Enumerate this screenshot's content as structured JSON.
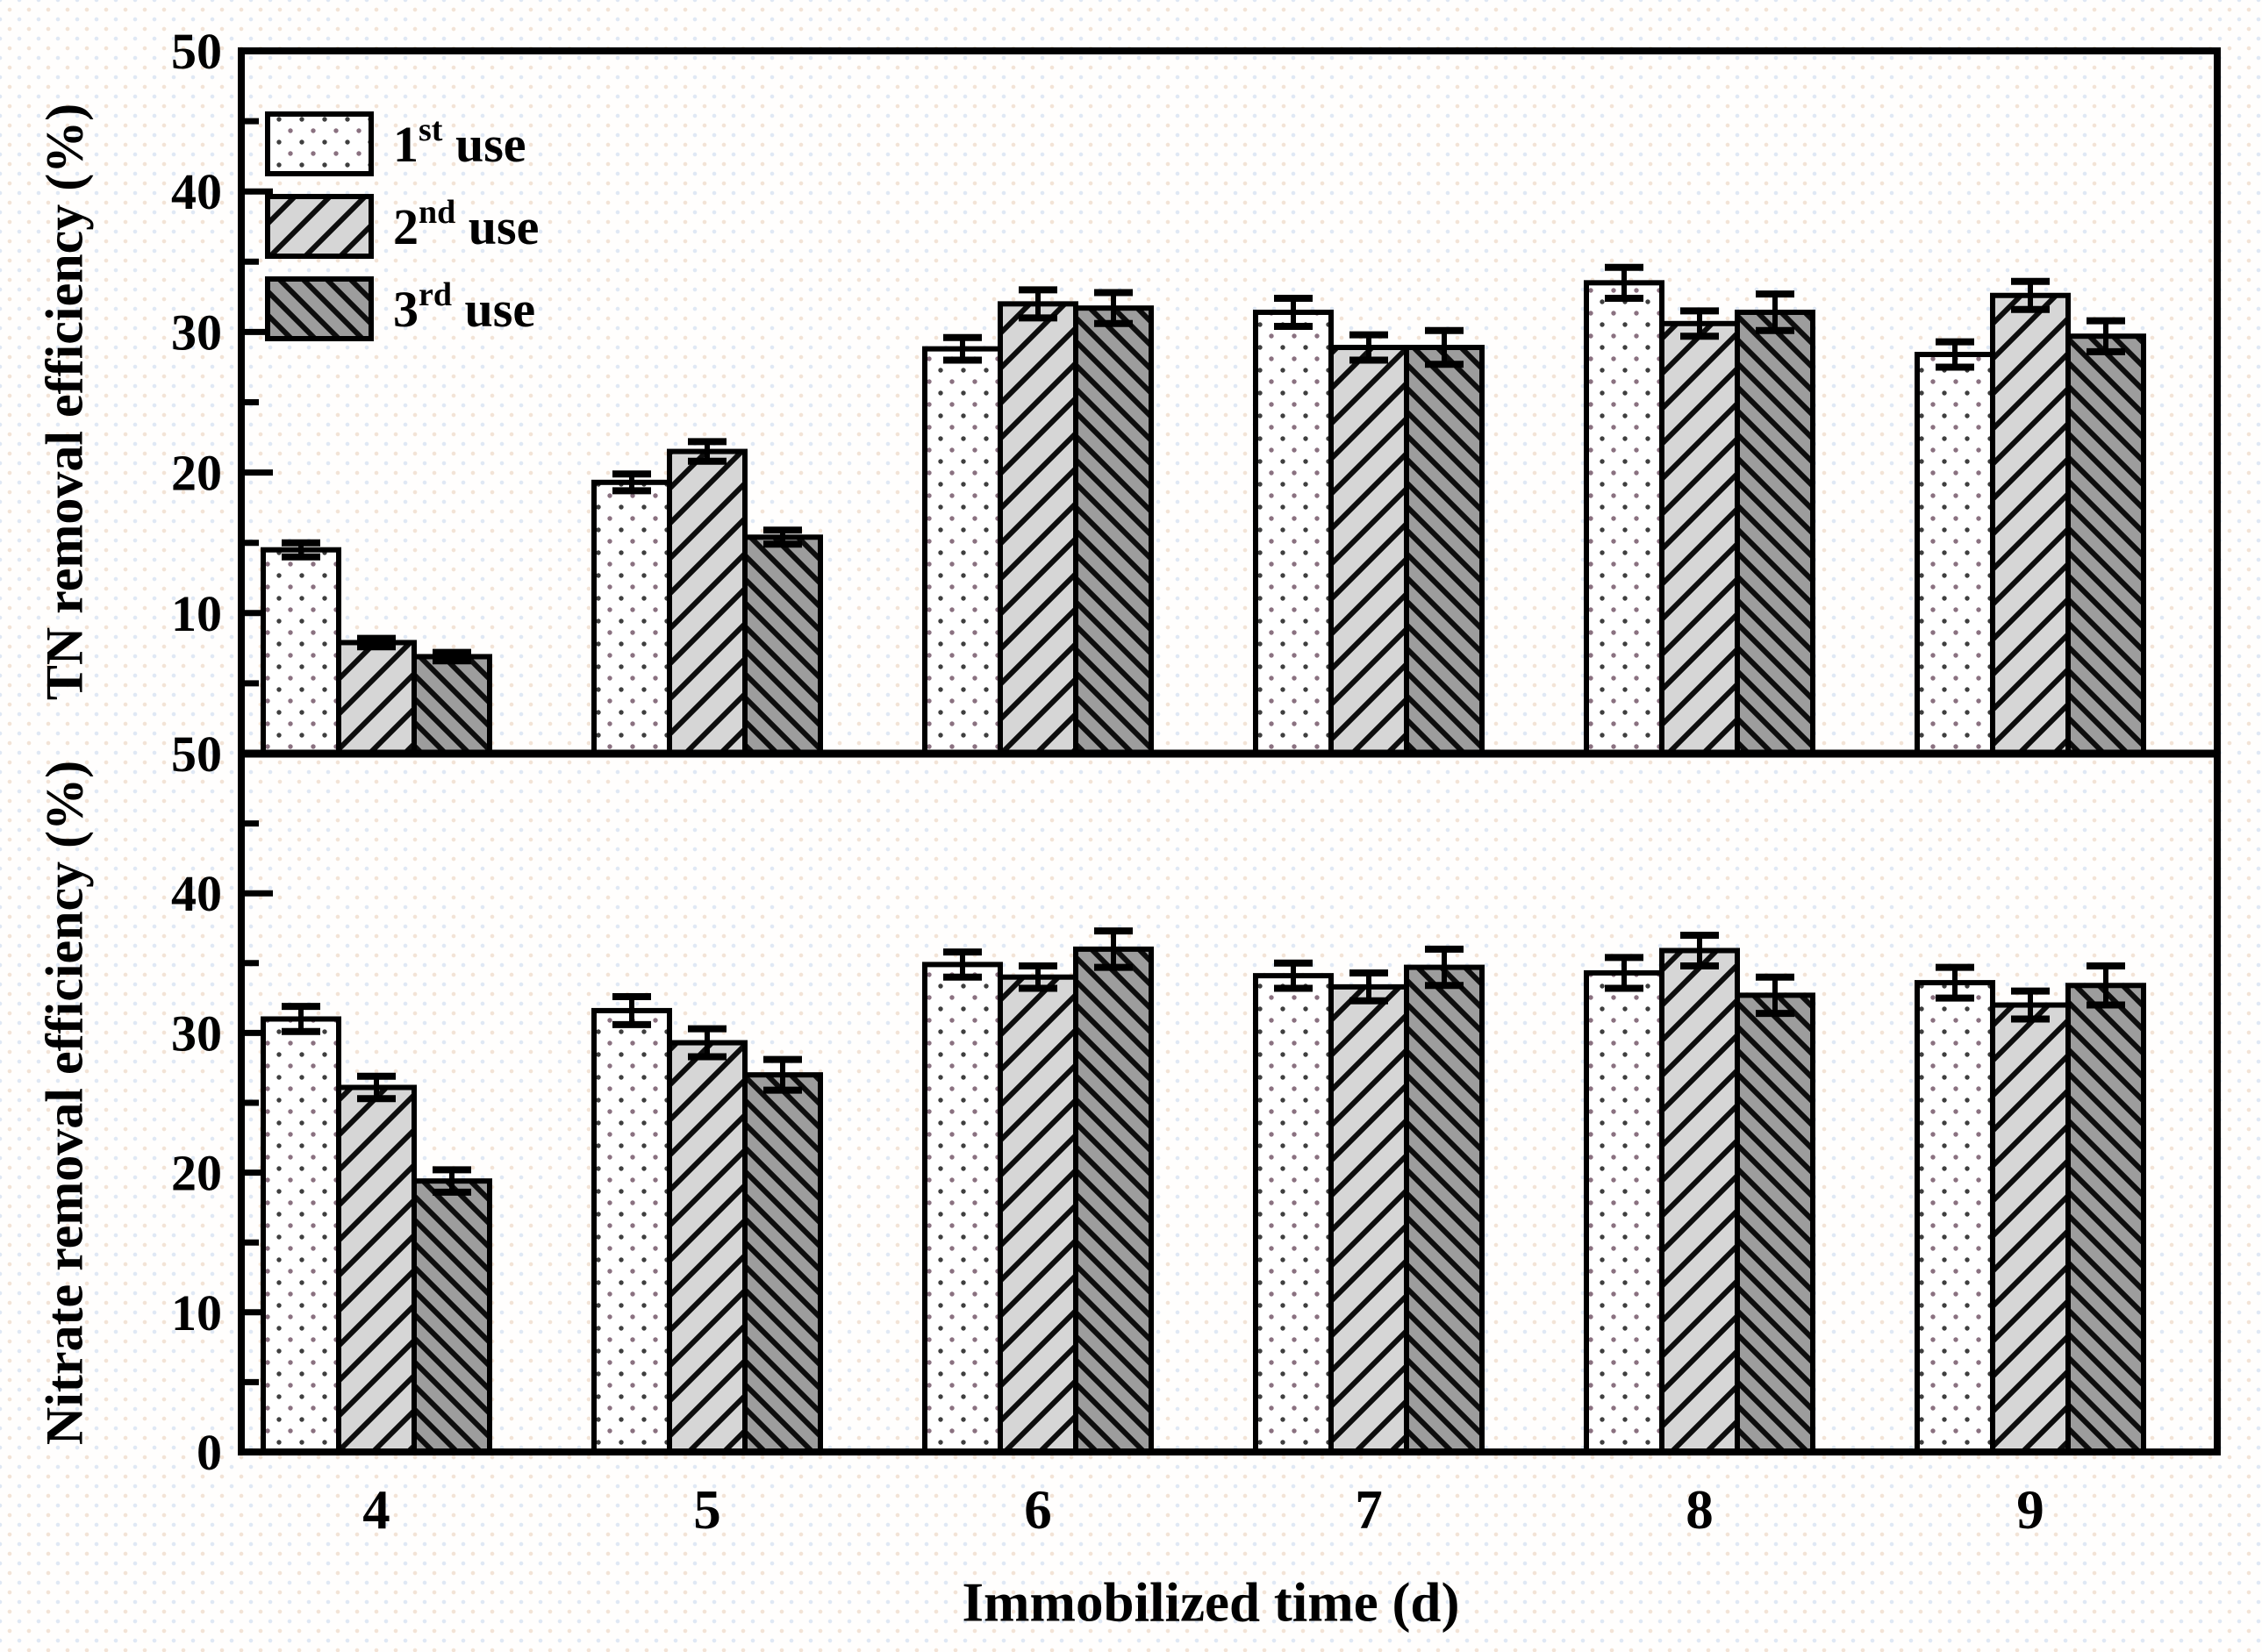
{
  "figure": {
    "xlabel": "Immobilized time (d)",
    "ink": "#000000",
    "background": "#fffefd"
  },
  "legend": {
    "items": [
      {
        "num": "1",
        "sup": "st",
        "rest": " use",
        "pattern": "dots",
        "series": "1st use"
      },
      {
        "num": "2",
        "sup": "nd",
        "rest": " use",
        "pattern": "hatch-light",
        "series": "2nd use"
      },
      {
        "num": "3",
        "sup": "rd",
        "rest": " use",
        "pattern": "hatch-dark",
        "series": "3rd use"
      }
    ]
  },
  "patterns": {
    "dots": {
      "bg": "#ffffff",
      "dot1": "#3f3f3f",
      "dot2": "#8a7180"
    },
    "hatch-light": {
      "bg": "#d6d6d6",
      "line": "#0d0d0d"
    },
    "hatch-dark": {
      "bg": "#9d9d9d",
      "line": "#0d0d0d"
    }
  },
  "chart_data": [
    {
      "type": "bar",
      "panel": "top",
      "ylabel": "TN removal efficiency (%)",
      "ylim": [
        0,
        50
      ],
      "grid": false,
      "legend_position": "top-left",
      "yticks_major": [
        10,
        20,
        30,
        40
      ],
      "yticks_minor": [
        5,
        15,
        25,
        35,
        45
      ],
      "ytick_labels": [
        {
          "v": 10,
          "t": "10"
        },
        {
          "v": 20,
          "t": "20"
        },
        {
          "v": 30,
          "t": "30"
        },
        {
          "v": 40,
          "t": "40"
        },
        {
          "v": 50,
          "t": "50"
        }
      ],
      "categories": [
        "4",
        "5",
        "6",
        "7",
        "8",
        "9"
      ],
      "series": [
        {
          "name": "1st use",
          "pattern": "dots",
          "values": [
            14.5,
            19.3,
            28.8,
            31.4,
            33.5,
            28.4
          ],
          "errors": [
            0.5,
            0.6,
            0.8,
            1.0,
            1.1,
            0.9
          ]
        },
        {
          "name": "2nd use",
          "pattern": "hatch-light",
          "values": [
            7.9,
            21.5,
            32.0,
            28.9,
            30.6,
            32.6
          ],
          "errors": [
            0.3,
            0.7,
            1.0,
            0.9,
            0.9,
            1.0
          ]
        },
        {
          "name": "3rd use",
          "pattern": "hatch-dark",
          "values": [
            6.9,
            15.4,
            31.7,
            28.9,
            31.4,
            29.7
          ],
          "errors": [
            0.3,
            0.5,
            1.1,
            1.2,
            1.3,
            1.1
          ]
        }
      ]
    },
    {
      "type": "bar",
      "panel": "bottom",
      "ylabel": "Nitrate removal efficiency (%)",
      "ylim": [
        0,
        50
      ],
      "grid": false,
      "yticks_major": [
        10,
        20,
        30,
        40
      ],
      "yticks_minor": [
        5,
        15,
        25,
        35,
        45
      ],
      "ytick_labels": [
        {
          "v": 0,
          "t": "0"
        },
        {
          "v": 10,
          "t": "10"
        },
        {
          "v": 20,
          "t": "20"
        },
        {
          "v": 30,
          "t": "30"
        },
        {
          "v": 40,
          "t": "40"
        },
        {
          "v": 50,
          "t": "50"
        }
      ],
      "categories": [
        "4",
        "5",
        "6",
        "7",
        "8",
        "9"
      ],
      "series": [
        {
          "name": "1st use",
          "pattern": "dots",
          "values": [
            31.0,
            31.6,
            34.9,
            34.1,
            34.3,
            33.6
          ],
          "errors": [
            0.9,
            1.0,
            0.9,
            0.9,
            1.1,
            1.1
          ]
        },
        {
          "name": "2nd use",
          "pattern": "hatch-light",
          "values": [
            26.1,
            29.3,
            34.0,
            33.3,
            35.9,
            32.0
          ],
          "errors": [
            0.8,
            1.0,
            0.8,
            1.0,
            1.1,
            1.0
          ]
        },
        {
          "name": "3rd use",
          "pattern": "hatch-dark",
          "values": [
            19.4,
            27.0,
            36.0,
            34.7,
            32.7,
            33.4
          ],
          "errors": [
            0.8,
            1.1,
            1.3,
            1.3,
            1.3,
            1.4
          ]
        }
      ]
    }
  ]
}
